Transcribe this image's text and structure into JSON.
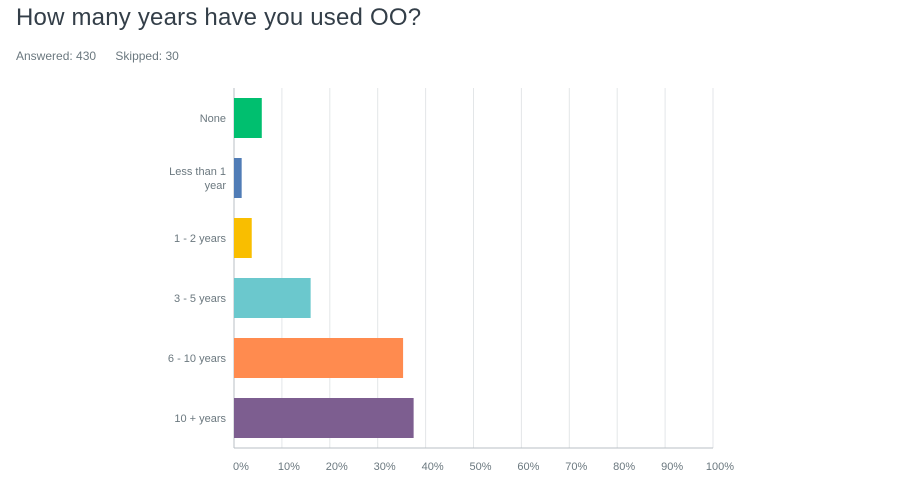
{
  "question": {
    "title": "How many years have you used OO?",
    "answered_label": "Answered: 430",
    "skipped_label": "Skipped: 30"
  },
  "chart_data": {
    "type": "bar",
    "orientation": "horizontal",
    "title": "How many years have you used OO?",
    "xlabel": "",
    "ylabel": "",
    "xlim": [
      0,
      100
    ],
    "x_ticks": [
      "0%",
      "10%",
      "20%",
      "30%",
      "40%",
      "50%",
      "60%",
      "70%",
      "80%",
      "90%",
      "100%"
    ],
    "grid": true,
    "categories": [
      [
        "None"
      ],
      [
        "Less than 1",
        "year"
      ],
      [
        "1 - 2 years"
      ],
      [
        "3 - 5 years"
      ],
      [
        "6 - 10 years"
      ],
      [
        "10 + years"
      ]
    ],
    "values": [
      5.8,
      1.6,
      3.7,
      16.0,
      35.3,
      37.5
    ],
    "colors": [
      "#00bf6f",
      "#507cb6",
      "#f9be00",
      "#6bc8cd",
      "#ff8b4f",
      "#7d5e90"
    ]
  }
}
